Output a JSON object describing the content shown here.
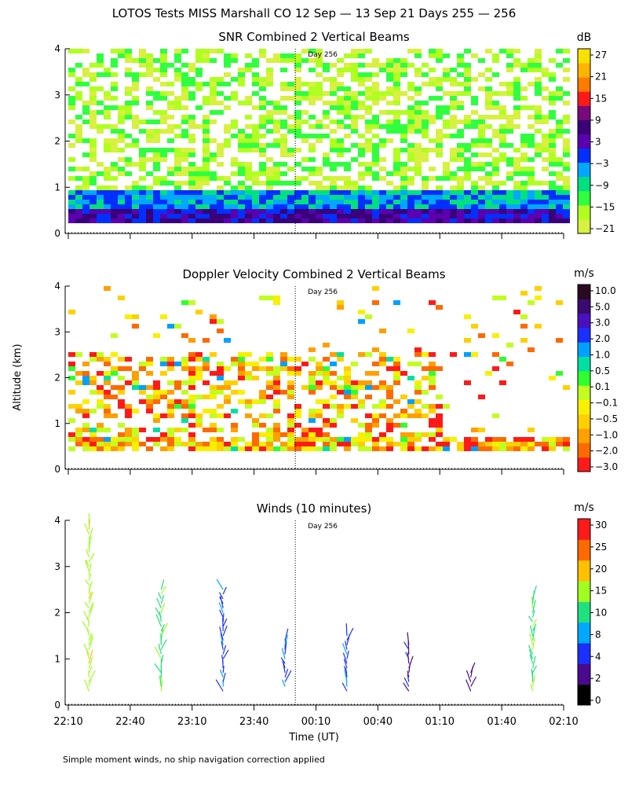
{
  "main_title": "LOTOS Tests MISS Marshall CO  12 Sep — 13 Sep 21 Days 255 — 256",
  "y_axis_label": "Altitude (km)",
  "x_axis_label": "Time (UT)",
  "footnote": "Simple moment winds, no ship navigation correction applied",
  "day_marker": "Day 256",
  "x_ticks": [
    "22:10",
    "22:40",
    "23:10",
    "23:40",
    "00:10",
    "00:40",
    "01:10",
    "01:40",
    "02:10"
  ],
  "panels": [
    {
      "title": "SNR Combined 2 Vertical Beams",
      "unit": "dB",
      "colorbar_labels": [
        "27",
        "21",
        "15",
        "9",
        "3",
        "−3",
        "−9",
        "−15",
        "−21"
      ],
      "colorbar_colors": [
        "#f8e000",
        "#ffb400",
        "#ff7a00",
        "#ff1a1a",
        "#7a0a7a",
        "#3a007a",
        "#5a00b0",
        "#0030ff",
        "#00a8ff",
        "#00e080",
        "#30ff40",
        "#b0ff20",
        "#d8f040"
      ]
    },
    {
      "title": "Doppler Velocity Combined 2 Vertical Beams",
      "unit": "m/s",
      "colorbar_labels": [
        "10.0",
        "5.0",
        "3.0",
        "2.0",
        "1.0",
        "0.5",
        "0.1",
        "−0.1",
        "−0.5",
        "−1.0",
        "−2.0",
        "−3.0"
      ],
      "colorbar_colors": [
        "#2a0a20",
        "#3a0a70",
        "#4a10c0",
        "#1a30ff",
        "#00a0ff",
        "#00e0a0",
        "#30ff30",
        "#c0ff20",
        "#f8f000",
        "#ffd000",
        "#ffa000",
        "#ff6a00",
        "#ff1a1a"
      ]
    },
    {
      "title": "Winds (10 minutes)",
      "unit": "m/s",
      "colorbar_labels": [
        "30",
        "25",
        "20",
        "15",
        "10",
        "8",
        "4",
        "2",
        "0"
      ],
      "colorbar_colors": [
        "#ff1a1a",
        "#ff6a00",
        "#ffc000",
        "#a0ff20",
        "#20e080",
        "#00a8ff",
        "#1a30ff",
        "#4a0a90",
        "#000000"
      ]
    }
  ],
  "chart_data": [
    {
      "type": "heatmap",
      "title": "SNR Combined 2 Vertical Beams",
      "xlabel": "Time (UT)",
      "ylabel": "Altitude (km)",
      "x_range": [
        "22:10",
        "02:10"
      ],
      "ylim": [
        0,
        4
      ],
      "y_ticks": [
        0,
        1,
        2,
        3,
        4
      ],
      "colorbar_unit": "dB",
      "colorbar_range": [
        -21,
        27
      ],
      "marker": "Day 256",
      "description_layers": [
        {
          "altitude_range_km": [
            0.2,
            0.5
          ],
          "approx_snr_db": 3
        },
        {
          "altitude_range_km": [
            0.5,
            1.0
          ],
          "approx_snr_db": -9
        },
        {
          "altitude_range_km": [
            1.0,
            4.0
          ],
          "approx_snr_db": -21
        }
      ]
    },
    {
      "type": "heatmap",
      "title": "Doppler Velocity Combined 2 Vertical Beams",
      "xlabel": "Time (UT)",
      "ylabel": "Altitude (km)",
      "x_range": [
        "22:10",
        "02:10"
      ],
      "ylim": [
        0,
        4
      ],
      "y_ticks": [
        0,
        1,
        2,
        3,
        4
      ],
      "colorbar_unit": "m/s",
      "colorbar_range": [
        -3.0,
        10.0
      ],
      "marker": "Day 256"
    },
    {
      "type": "scatter",
      "title": "Winds (10 minutes)",
      "xlabel": "Time (UT)",
      "ylabel": "Altitude (km)",
      "x_range": [
        "22:10",
        "02:10"
      ],
      "ylim": [
        0,
        4
      ],
      "y_ticks": [
        0,
        1,
        2,
        3,
        4
      ],
      "colorbar_unit": "m/s",
      "colorbar_range": [
        0,
        30
      ],
      "marker": "Day 256",
      "profile_times": [
        "22:20",
        "22:55",
        "23:25",
        "23:55",
        "00:25",
        "00:55",
        "01:25",
        "01:55"
      ],
      "profiles": [
        {
          "time": "22:20",
          "alt_min_km": 0.3,
          "alt_max_km": 4.0,
          "speed_ms": 18
        },
        {
          "time": "22:55",
          "alt_min_km": 0.3,
          "alt_max_km": 2.6,
          "speed_ms": 12
        },
        {
          "time": "23:25",
          "alt_min_km": 0.3,
          "alt_max_km": 2.6,
          "speed_ms": 8
        },
        {
          "time": "23:55",
          "alt_min_km": 0.4,
          "alt_max_km": 1.5,
          "speed_ms": 6
        },
        {
          "time": "00:25",
          "alt_min_km": 0.3,
          "alt_max_km": 1.6,
          "speed_ms": 6
        },
        {
          "time": "00:55",
          "alt_min_km": 0.3,
          "alt_max_km": 1.3,
          "speed_ms": 4
        },
        {
          "time": "01:25",
          "alt_min_km": 0.3,
          "alt_max_km": 0.7,
          "speed_ms": 4
        },
        {
          "time": "01:55",
          "alt_min_km": 0.3,
          "alt_max_km": 2.4,
          "speed_ms": 12
        }
      ]
    }
  ]
}
